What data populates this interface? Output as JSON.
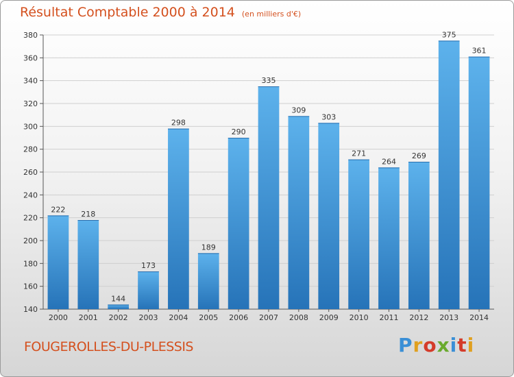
{
  "chart_data": {
    "type": "bar",
    "title": "Résultat Comptable 2000 à 2014",
    "subtitle": "(en milliers d'€)",
    "xlabel": "",
    "ylabel": "",
    "categories": [
      "2000",
      "2001",
      "2002",
      "2003",
      "2004",
      "2005",
      "2006",
      "2007",
      "2008",
      "2009",
      "2010",
      "2011",
      "2012",
      "2013",
      "2014"
    ],
    "values": [
      222,
      218,
      144,
      173,
      298,
      189,
      290,
      335,
      309,
      303,
      271,
      264,
      269,
      375,
      361
    ],
    "ylim": [
      140,
      380
    ],
    "yticks": [
      140,
      160,
      180,
      200,
      220,
      240,
      260,
      280,
      300,
      320,
      340,
      360,
      380
    ],
    "grid": true,
    "bar_color": "#3f97da"
  },
  "footer": {
    "commune": "FOUGEROLLES-DU-PLESSIS",
    "logo": [
      "P",
      "r",
      "o",
      "x",
      "i",
      "t",
      "i"
    ]
  }
}
